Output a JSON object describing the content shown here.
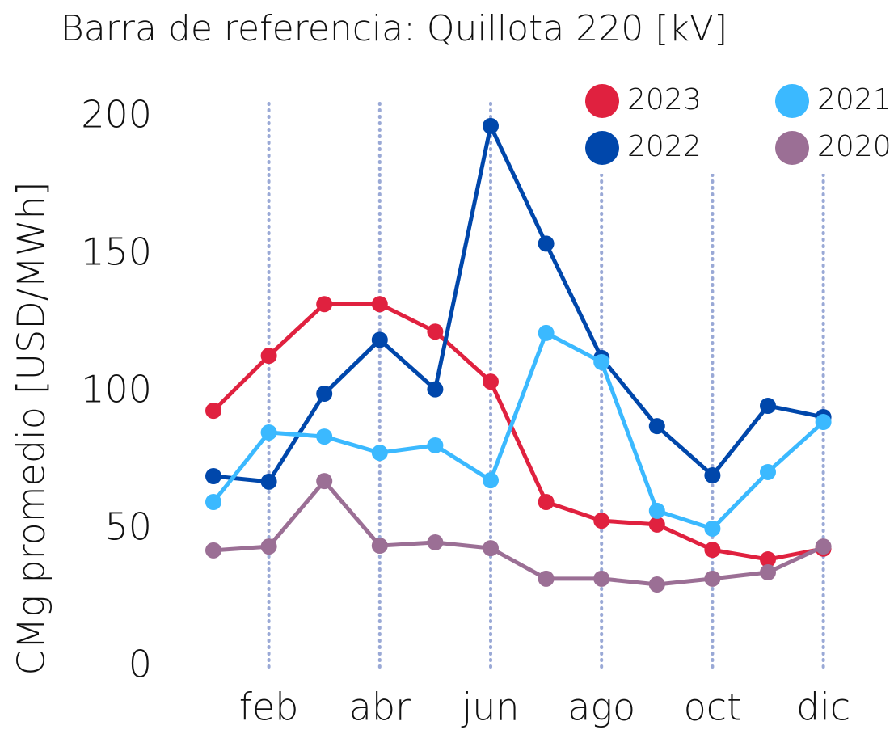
{
  "chart_data": {
    "type": "line",
    "title": "Barra de referencia: Quillota 220 [kV]",
    "y_label": "CMg promedio [USD/MWh]",
    "categories": [
      null,
      "feb",
      null,
      "abr",
      null,
      "jun",
      null,
      "ago",
      null,
      "oct",
      null,
      "dic"
    ],
    "ylim": [
      0,
      200
    ],
    "yticks": [
      0,
      50,
      100,
      150,
      200
    ],
    "grid": true,
    "legend": "upper right",
    "series": [
      {
        "name": "2023",
        "color": "#e0213f",
        "values": [
          93.2,
          113.2,
          132,
          132,
          122,
          103.8,
          60,
          53.2,
          51.8,
          42.6,
          39.1,
          43
        ]
      },
      {
        "name": "2022",
        "color": "#0047ab",
        "values": [
          69.4,
          67.4,
          99.4,
          119,
          101,
          196.8,
          154,
          112.4,
          87.6,
          69.7,
          95,
          90.9
        ]
      },
      {
        "name": "2021",
        "color": "#3bb9ff",
        "values": [
          60,
          85.3,
          83.8,
          77.9,
          80.6,
          67.9,
          121.5,
          110.9,
          56.8,
          50.3,
          70.9,
          89.1
        ]
      },
      {
        "name": "2020",
        "color": "#9b6f95",
        "values": [
          42.4,
          43.8,
          67.6,
          44.1,
          45.3,
          43.2,
          32.1,
          32.1,
          30,
          32.1,
          34.4,
          43.8
        ]
      }
    ]
  }
}
